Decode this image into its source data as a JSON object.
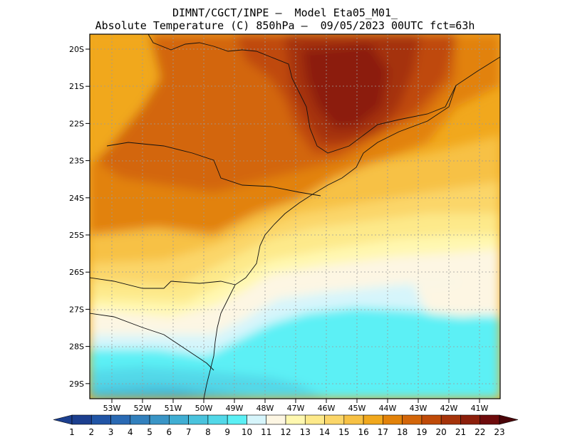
{
  "header": {
    "line1": "DIMNT/CGCT/INPE –  Model Eta05_M01_",
    "line2": "Absolute Temperature (C) 850hPa –  09/05/2023 00UTC fct=63h"
  },
  "map": {
    "lat_labels": [
      "20S",
      "21S",
      "22S",
      "23S",
      "24S",
      "25S",
      "26S",
      "27S",
      "28S",
      "29S"
    ],
    "lon_labels": [
      "53W",
      "52W",
      "51W",
      "50W",
      "49W",
      "48W",
      "47W",
      "46W",
      "45W",
      "44W",
      "43W",
      "42W",
      "41W"
    ],
    "extent": {
      "lon": [
        -54.0,
        -40.6
      ],
      "lat": [
        -29.45,
        -19.8
      ]
    },
    "grid": "dotted"
  },
  "colorbar": {
    "labels": [
      "1",
      "2",
      "3",
      "4",
      "5",
      "6",
      "7",
      "8",
      "9",
      "10",
      "11",
      "12",
      "13",
      "14",
      "15",
      "16",
      "17",
      "18",
      "19",
      "20",
      "21",
      "22",
      "23"
    ],
    "colors": [
      "#1c3f8f",
      "#2155a6",
      "#2a6ab4",
      "#3280bd",
      "#3a95c6",
      "#40aed3",
      "#4ac3dd",
      "#52d8e8",
      "#5bf0f5",
      "#d6f5fb",
      "#fdf6e3",
      "#fff8b0",
      "#fde98a",
      "#fbd669",
      "#f7c144",
      "#f1a81d",
      "#e28209",
      "#d3660a",
      "#bf4a08",
      "#a5330a",
      "#8c1f0b",
      "#6e0b0c"
    ],
    "units": "C"
  }
}
